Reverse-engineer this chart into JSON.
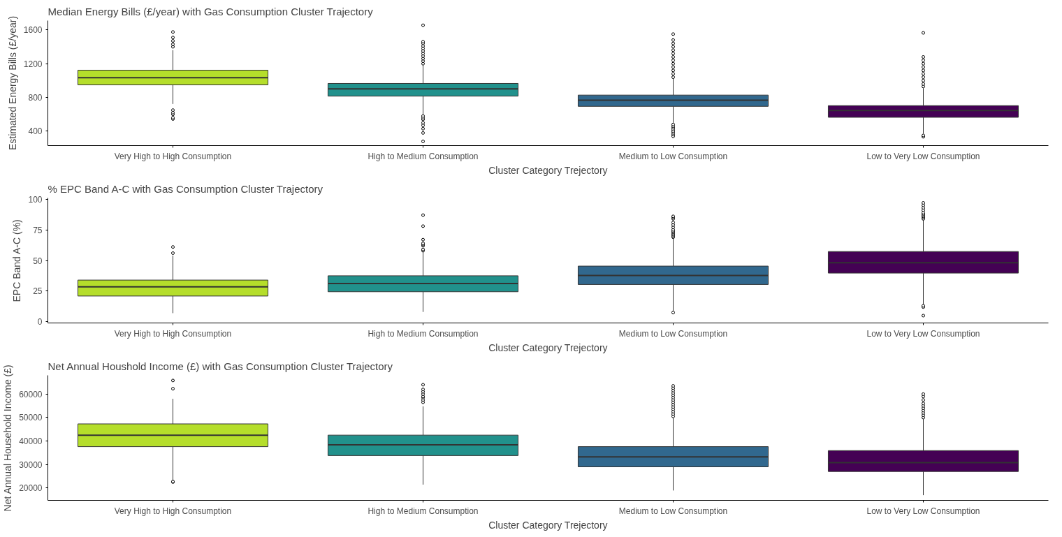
{
  "chart_data": [
    {
      "type": "box",
      "title": "Median Energy Bills (£/year) with Gas Consumption Cluster Trajectory",
      "xlabel": "Cluster Category Trejectory",
      "ylabel": "Estimated Energy Bills (£/year)",
      "categories": [
        "Very High to High Consumption",
        "High to Medium Consumption",
        "Medium to Low Consumption",
        "Low to Very Low Consumption"
      ],
      "colors": [
        "#b5de2b",
        "#21918c",
        "#31688e",
        "#440154"
      ],
      "ylim": [
        230,
        1710
      ],
      "yticks": [
        400,
        800,
        1200,
        1600
      ],
      "grid": false,
      "boxes": [
        {
          "low": 723,
          "q1": 949,
          "median": 1034,
          "q3": 1123,
          "high": 1360,
          "outliers": [
            545,
            560,
            600,
            620,
            650,
            1400,
            1430,
            1470,
            1510,
            1575
          ]
        },
        {
          "low": 600,
          "q1": 816,
          "median": 901,
          "q3": 966,
          "high": 1190,
          "outliers": [
            280,
            380,
            430,
            470,
            500,
            540,
            560,
            580,
            1200,
            1230,
            1260,
            1290,
            1320,
            1350,
            1380,
            1410,
            1440,
            1460,
            1655
          ]
        },
        {
          "low": 500,
          "q1": 695,
          "median": 768,
          "q3": 828,
          "high": 1030,
          "outliers": [
            340,
            360,
            380,
            400,
            420,
            440,
            460,
            480,
            1040,
            1080,
            1120,
            1160,
            1200,
            1240,
            1280,
            1320,
            1360,
            1400,
            1440,
            1480,
            1550
          ]
        },
        {
          "low": 370,
          "q1": 565,
          "median": 646,
          "q3": 703,
          "high": 910,
          "outliers": [
            335,
            350,
            930,
            960,
            1000,
            1040,
            1080,
            1120,
            1160,
            1200,
            1240,
            1280,
            1565
          ]
        }
      ]
    },
    {
      "type": "box",
      "title": "% EPC Band A-C with Gas Consumption Cluster Trajectory",
      "xlabel": "Cluster Category Trejectory",
      "ylabel": "EPC Band A-C (%)",
      "categories": [
        "Very High to High Consumption",
        "High to Medium Consumption",
        "Medium to Low Consumption",
        "Low to Very Low Consumption"
      ],
      "colors": [
        "#b5de2b",
        "#21918c",
        "#31688e",
        "#440154"
      ],
      "ylim": [
        -1,
        101
      ],
      "yticks": [
        0,
        25,
        50,
        75,
        100
      ],
      "grid": false,
      "boxes": [
        {
          "low": 7,
          "q1": 21,
          "median": 28.5,
          "q3": 34,
          "high": 54,
          "outliers": [
            56,
            61
          ]
        },
        {
          "low": 8,
          "q1": 24.5,
          "median": 31.2,
          "q3": 37.5,
          "high": 57,
          "outliers": [
            58,
            59,
            62,
            63,
            64,
            67,
            78,
            87
          ]
        },
        {
          "low": 9,
          "q1": 30.4,
          "median": 37.8,
          "q3": 45.4,
          "high": 68,
          "outliers": [
            7.5,
            69,
            70,
            71,
            72,
            73,
            74,
            75,
            77,
            79,
            81,
            84,
            85,
            86
          ]
        },
        {
          "low": 14,
          "q1": 39.7,
          "median": 48.1,
          "q3": 57.3,
          "high": 83,
          "outliers": [
            5,
            12,
            13,
            84,
            85,
            86,
            87,
            88,
            89,
            91,
            93,
            95,
            97
          ]
        }
      ]
    },
    {
      "type": "box",
      "title": "Net Annual Houshold Income (£) with Gas Consumption Cluster Trajectory",
      "xlabel": "Cluster Category Trejectory",
      "ylabel": "Net Annual Household Income (£)",
      "categories": [
        "Very High to High Consumption",
        "High to Medium Consumption",
        "Medium to Low Consumption",
        "Low to Very Low Consumption"
      ],
      "colors": [
        "#b5de2b",
        "#21918c",
        "#31688e",
        "#440154"
      ],
      "ylim": [
        14700,
        68000
      ],
      "yticks": [
        20000,
        30000,
        40000,
        50000,
        60000
      ],
      "grid": false,
      "boxes": [
        {
          "low": 23100,
          "q1": 37600,
          "median": 42500,
          "q3": 47300,
          "high": 58000,
          "outliers": [
            22500,
            22700,
            62300,
            65800
          ]
        },
        {
          "low": 21400,
          "q1": 33800,
          "median": 38400,
          "q3": 42500,
          "high": 54800,
          "outliers": [
            56500,
            57500,
            58500,
            59000,
            60000,
            61000,
            62000,
            64000
          ]
        },
        {
          "low": 18900,
          "q1": 29000,
          "median": 33200,
          "q3": 37600,
          "high": 49900,
          "outliers": [
            50500,
            51500,
            52500,
            53500,
            54500,
            55500,
            56500,
            57500,
            58500,
            59500,
            60500,
            61500,
            62500,
            63500
          ]
        },
        {
          "low": 16900,
          "q1": 27000,
          "median": 30800,
          "q3": 35900,
          "high": 49600,
          "outliers": [
            50000,
            51000,
            52000,
            53000,
            54000,
            55000,
            56000,
            57500,
            59000,
            60000
          ]
        }
      ]
    }
  ]
}
